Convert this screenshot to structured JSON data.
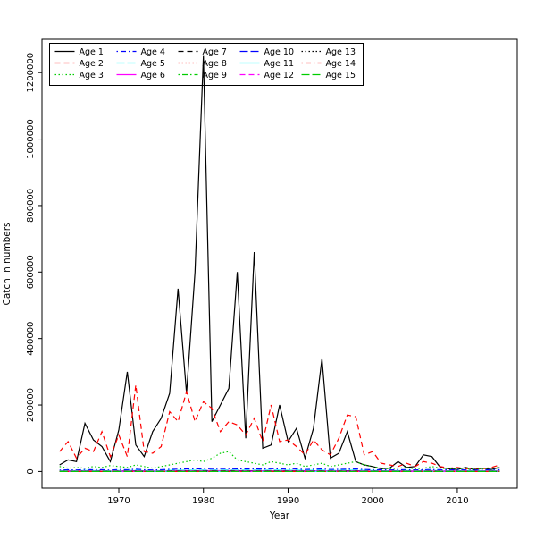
{
  "chart_data": {
    "type": "line",
    "title": "",
    "xlabel": "Year",
    "ylabel": "Catch in numbers",
    "xlim": [
      1963,
      2015
    ],
    "ylim": [
      0,
      1250000
    ],
    "x_ticks": [
      1970,
      1980,
      1990,
      2000,
      2010
    ],
    "y_ticks": [
      0,
      200000,
      400000,
      600000,
      800000,
      1000000,
      1200000
    ],
    "grid": false,
    "legend_position": "top-left",
    "legend_columns": 5,
    "legend_rows": 3,
    "x": [
      1963,
      1964,
      1965,
      1966,
      1967,
      1968,
      1969,
      1970,
      1971,
      1972,
      1973,
      1974,
      1975,
      1976,
      1977,
      1978,
      1979,
      1980,
      1981,
      1982,
      1983,
      1984,
      1985,
      1986,
      1987,
      1988,
      1989,
      1990,
      1991,
      1992,
      1993,
      1994,
      1995,
      1996,
      1997,
      1998,
      1999,
      2000,
      2001,
      2002,
      2003,
      2004,
      2005,
      2006,
      2007,
      2008,
      2009,
      2010,
      2011,
      2012,
      2013,
      2014,
      2015
    ],
    "series": [
      {
        "name": "Age 1",
        "color": "#000000",
        "linestyle": "solid",
        "values": [
          20000,
          35000,
          30000,
          145000,
          95000,
          75000,
          30000,
          125000,
          300000,
          80000,
          45000,
          120000,
          160000,
          235000,
          550000,
          235000,
          600000,
          1250000,
          150000,
          200000,
          250000,
          600000,
          100000,
          660000,
          70000,
          80000,
          200000,
          90000,
          130000,
          40000,
          130000,
          340000,
          40000,
          55000,
          120000,
          30000,
          20000,
          15000,
          8000,
          10000,
          30000,
          12000,
          15000,
          50000,
          45000,
          12000,
          8000,
          6000,
          12000,
          6000,
          10000,
          6000,
          12000
        ]
      },
      {
        "name": "Age 2",
        "color": "#FF0000",
        "linestyle": "dashed",
        "values": [
          60000,
          90000,
          40000,
          70000,
          60000,
          120000,
          45000,
          110000,
          45000,
          260000,
          60000,
          55000,
          75000,
          180000,
          150000,
          240000,
          150000,
          210000,
          190000,
          120000,
          150000,
          140000,
          110000,
          160000,
          90000,
          200000,
          90000,
          95000,
          75000,
          50000,
          95000,
          65000,
          50000,
          100000,
          170000,
          165000,
          50000,
          60000,
          25000,
          20000,
          15000,
          25000,
          15000,
          30000,
          25000,
          15000,
          10000,
          12000,
          8000,
          10000,
          8000,
          12000,
          20000
        ]
      },
      {
        "name": "Age 3",
        "color": "#00CD00",
        "linestyle": "dotted",
        "values": [
          15000,
          10000,
          12000,
          10000,
          15000,
          12000,
          18000,
          15000,
          12000,
          20000,
          15000,
          10000,
          15000,
          20000,
          25000,
          30000,
          35000,
          30000,
          40000,
          55000,
          60000,
          35000,
          30000,
          25000,
          20000,
          30000,
          25000,
          20000,
          25000,
          15000,
          20000,
          25000,
          15000,
          20000,
          25000,
          30000,
          20000,
          15000,
          10000,
          8000,
          10000,
          12000,
          8000,
          10000,
          15000,
          10000,
          8000,
          10000,
          8000,
          6000,
          8000,
          10000,
          12000
        ]
      },
      {
        "name": "Age 4",
        "color": "#0000FF",
        "linestyle": "dotdash",
        "values": [
          4000,
          5000,
          4500,
          6000,
          5000,
          5500,
          4000,
          6000,
          5000,
          7000,
          5000,
          4500,
          5000,
          6500,
          7000,
          8000,
          7500,
          8000,
          9000,
          8500,
          9000,
          8000,
          7500,
          8000,
          7000,
          8500,
          7500,
          7000,
          7500,
          6000,
          7000,
          7500,
          6000,
          6500,
          7000,
          7500,
          6000,
          5500,
          5000,
          4500,
          5000,
          5500,
          4500,
          5000,
          6000,
          5000,
          4500,
          5000,
          4500,
          4000,
          4500,
          5000,
          5500
        ]
      },
      {
        "name": "Age 5",
        "color": "#00FFFF",
        "linestyle": "longdash",
        "values": [
          2000,
          2500,
          2200,
          3000,
          2500,
          2800,
          2000,
          3000,
          2500,
          3500,
          2500,
          2200,
          2500,
          3200,
          3500,
          4000,
          3800,
          4000,
          4500,
          4200,
          4500,
          4000,
          3800,
          4000,
          3500,
          4200,
          3800,
          3500,
          3800,
          3000,
          3500,
          3800,
          3000,
          3200,
          3500,
          3800,
          3000,
          2800,
          2500,
          2200,
          2500,
          2800,
          2200,
          2500,
          3000,
          2500,
          2200,
          2500,
          2200,
          2000,
          2200,
          2500,
          2800
        ]
      },
      {
        "name": "Age 6",
        "color": "#FF00FF",
        "linestyle": "solid",
        "values": [
          1200,
          1500,
          1300,
          1800,
          1500,
          1700,
          1200,
          1800,
          1500,
          2100,
          1500,
          1300,
          1500,
          1900,
          2100,
          2400,
          2300,
          2400,
          2700,
          2500,
          2700,
          2400,
          2300,
          2400,
          2100,
          2500,
          2300,
          2100,
          2300,
          1800,
          2100,
          2300,
          1800,
          1900,
          2100,
          2300,
          1800,
          1700,
          1500,
          1300,
          1500,
          1700,
          1300,
          1500,
          1800,
          1500,
          1300,
          1500,
          1300,
          1200,
          1300,
          1500,
          1700
        ]
      },
      {
        "name": "Age 7",
        "color": "#000000",
        "linestyle": "dashed",
        "values": [
          800,
          1000,
          900,
          1200,
          1000,
          1100,
          800,
          1200,
          1000,
          1400,
          1000,
          900,
          1000,
          1300,
          1400,
          1600,
          1500,
          1600,
          1800,
          1700,
          1800,
          1600,
          1500,
          1600,
          1400,
          1700,
          1500,
          1400,
          1500,
          1200,
          1400,
          1500,
          1200,
          1300,
          1400,
          1500,
          1200,
          1100,
          1000,
          900,
          1000,
          1100,
          900,
          1000,
          1200,
          1000,
          900,
          1000,
          900,
          800,
          900,
          1000,
          1100
        ]
      },
      {
        "name": "Age 8",
        "color": "#FF0000",
        "linestyle": "dotted",
        "values": [
          500,
          600,
          550,
          700,
          600,
          650,
          500,
          700,
          600,
          850,
          600,
          550,
          600,
          800,
          850,
          950,
          900,
          950,
          1100,
          1000,
          1100,
          950,
          900,
          950,
          850,
          1000,
          900,
          850,
          900,
          700,
          850,
          900,
          700,
          800,
          850,
          900,
          700,
          650,
          600,
          550,
          600,
          650,
          550,
          600,
          700,
          600,
          550,
          600,
          550,
          500,
          550,
          600,
          650
        ]
      },
      {
        "name": "Age 9",
        "color": "#00CD00",
        "linestyle": "dotdash",
        "values": [
          300,
          400,
          350,
          450,
          400,
          420,
          300,
          450,
          400,
          550,
          400,
          350,
          400,
          500,
          550,
          600,
          580,
          600,
          700,
          650,
          700,
          600,
          580,
          600,
          550,
          650,
          580,
          550,
          580,
          450,
          550,
          580,
          450,
          500,
          550,
          580,
          450,
          420,
          400,
          350,
          400,
          420,
          350,
          400,
          450,
          400,
          350,
          400,
          350,
          300,
          350,
          400,
          420
        ]
      },
      {
        "name": "Age 10",
        "color": "#0000FF",
        "linestyle": "longdash",
        "values": [
          200,
          250,
          220,
          300,
          250,
          280,
          200,
          300,
          250,
          350,
          250,
          220,
          250,
          320,
          350,
          400,
          380,
          400,
          450,
          420,
          450,
          400,
          380,
          400,
          350,
          420,
          380,
          350,
          380,
          300,
          350,
          380,
          300,
          320,
          350,
          380,
          300,
          280,
          250,
          220,
          250,
          280,
          220,
          250,
          300,
          250,
          220,
          250,
          220,
          200,
          220,
          250,
          280
        ]
      },
      {
        "name": "Age 11",
        "color": "#00FFFF",
        "linestyle": "solid",
        "values": [
          120,
          150,
          130,
          180,
          150,
          170,
          120,
          180,
          150,
          210,
          150,
          130,
          150,
          190,
          210,
          240,
          230,
          240,
          270,
          250,
          270,
          240,
          230,
          240,
          210,
          250,
          230,
          210,
          230,
          180,
          210,
          230,
          180,
          190,
          210,
          230,
          180,
          170,
          150,
          130,
          150,
          170,
          130,
          150,
          180,
          150,
          130,
          150,
          130,
          120,
          130,
          150,
          170
        ]
      },
      {
        "name": "Age 12",
        "color": "#FF00FF",
        "linestyle": "dashed",
        "values": [
          80,
          100,
          90,
          120,
          100,
          110,
          80,
          120,
          100,
          140,
          100,
          90,
          100,
          130,
          140,
          160,
          150,
          160,
          180,
          170,
          180,
          160,
          150,
          160,
          140,
          170,
          150,
          140,
          150,
          120,
          140,
          150,
          120,
          130,
          140,
          150,
          120,
          110,
          100,
          90,
          100,
          110,
          90,
          100,
          120,
          100,
          90,
          100,
          90,
          80,
          90,
          100,
          110
        ]
      },
      {
        "name": "Age 13",
        "color": "#000000",
        "linestyle": "dotted",
        "values": [
          50,
          60,
          55,
          70,
          60,
          65,
          50,
          70,
          60,
          85,
          60,
          55,
          60,
          80,
          85,
          95,
          90,
          95,
          110,
          100,
          110,
          95,
          90,
          95,
          85,
          100,
          90,
          85,
          90,
          70,
          85,
          90,
          70,
          80,
          85,
          90,
          70,
          65,
          60,
          55,
          60,
          65,
          55,
          60,
          70,
          60,
          55,
          60,
          55,
          50,
          55,
          60,
          65
        ]
      },
      {
        "name": "Age 14",
        "color": "#FF0000",
        "linestyle": "dotdash",
        "values": [
          30,
          40,
          35,
          45,
          40,
          42,
          30,
          45,
          40,
          55,
          40,
          35,
          40,
          50,
          55,
          60,
          58,
          60,
          70,
          65,
          70,
          60,
          58,
          60,
          55,
          65,
          58,
          55,
          58,
          45,
          55,
          58,
          45,
          50,
          55,
          58,
          45,
          42,
          40,
          35,
          40,
          42,
          35,
          40,
          45,
          40,
          35,
          40,
          35,
          30,
          35,
          40,
          42
        ]
      },
      {
        "name": "Age 15",
        "color": "#00CD00",
        "linestyle": "longdash",
        "values": [
          10,
          15,
          12,
          20,
          15,
          18,
          10,
          20,
          15,
          25,
          15,
          12,
          15,
          22,
          25,
          30,
          28,
          30,
          40,
          35,
          40,
          30,
          28,
          30,
          25,
          35,
          28,
          25,
          28,
          20,
          25,
          28,
          20,
          22,
          25,
          28,
          20,
          18,
          15,
          12,
          15,
          18,
          12,
          15,
          20,
          15,
          12,
          15,
          12,
          10,
          12,
          15,
          18
        ]
      }
    ]
  }
}
